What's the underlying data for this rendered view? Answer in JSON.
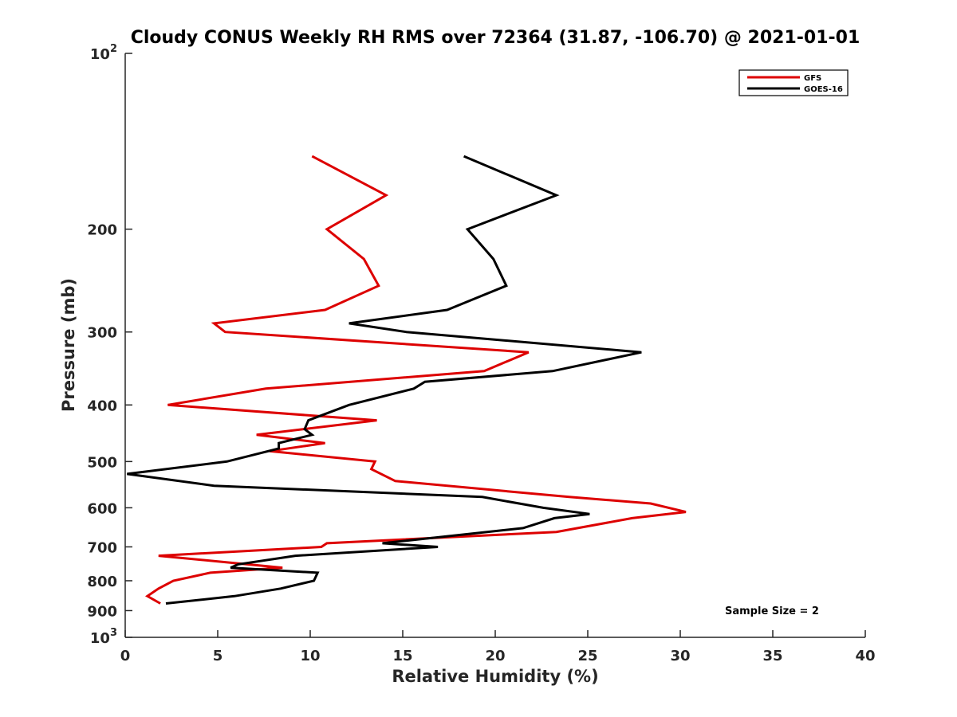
{
  "chart_data": {
    "type": "line",
    "title": "Cloudy CONUS Weekly RH RMS over 72364 (31.87, -106.70) @ 2021-01-01",
    "xlabel": "Relative Humidity (%)",
    "ylabel": "Pressure (mb)",
    "xlim": [
      0,
      40
    ],
    "ylim": [
      100,
      1000
    ],
    "y_scale": "log",
    "y_reversed": true,
    "x_ticks": [
      "0",
      "5",
      "10",
      "15",
      "20",
      "25",
      "30",
      "35",
      "40"
    ],
    "y_ticks": [
      {
        "value": 100,
        "base": "10",
        "exp": "2"
      },
      {
        "value": 200,
        "label": "200"
      },
      {
        "value": 300,
        "label": "300"
      },
      {
        "value": 400,
        "label": "400"
      },
      {
        "value": 500,
        "label": "500"
      },
      {
        "value": 600,
        "label": "600"
      },
      {
        "value": 700,
        "label": "700"
      },
      {
        "value": 800,
        "label": "800"
      },
      {
        "value": 900,
        "label": "900"
      },
      {
        "value": 1000,
        "base": "10",
        "exp": "3"
      }
    ],
    "grid": false,
    "legend_position": "top-right",
    "annotation": "Sample Size = 2",
    "series": [
      {
        "name": "GFS",
        "color": "#dd0000",
        "points": [
          {
            "x": 10.1,
            "y": 150
          },
          {
            "x": 14.1,
            "y": 175
          },
          {
            "x": 10.9,
            "y": 200
          },
          {
            "x": 12.9,
            "y": 225
          },
          {
            "x": 13.7,
            "y": 250
          },
          {
            "x": 10.8,
            "y": 275
          },
          {
            "x": 4.8,
            "y": 290
          },
          {
            "x": 5.4,
            "y": 300
          },
          {
            "x": 21.8,
            "y": 325
          },
          {
            "x": 19.4,
            "y": 350
          },
          {
            "x": 7.6,
            "y": 375
          },
          {
            "x": 2.3,
            "y": 400
          },
          {
            "x": 13.6,
            "y": 425
          },
          {
            "x": 7.1,
            "y": 450
          },
          {
            "x": 10.8,
            "y": 465
          },
          {
            "x": 7.8,
            "y": 480
          },
          {
            "x": 13.5,
            "y": 500
          },
          {
            "x": 13.3,
            "y": 515
          },
          {
            "x": 14.6,
            "y": 540
          },
          {
            "x": 24.0,
            "y": 575
          },
          {
            "x": 28.4,
            "y": 590
          },
          {
            "x": 30.3,
            "y": 610
          },
          {
            "x": 27.4,
            "y": 625
          },
          {
            "x": 23.3,
            "y": 660
          },
          {
            "x": 10.9,
            "y": 690
          },
          {
            "x": 10.6,
            "y": 700
          },
          {
            "x": 1.8,
            "y": 725
          },
          {
            "x": 8.5,
            "y": 760
          },
          {
            "x": 4.6,
            "y": 775
          },
          {
            "x": 2.6,
            "y": 800
          },
          {
            "x": 1.8,
            "y": 825
          },
          {
            "x": 1.2,
            "y": 850
          },
          {
            "x": 1.9,
            "y": 875
          }
        ]
      },
      {
        "name": "GOES-16",
        "color": "#000000",
        "points": [
          {
            "x": 18.3,
            "y": 150
          },
          {
            "x": 23.3,
            "y": 175
          },
          {
            "x": 18.5,
            "y": 200
          },
          {
            "x": 19.9,
            "y": 225
          },
          {
            "x": 20.6,
            "y": 250
          },
          {
            "x": 17.4,
            "y": 275
          },
          {
            "x": 12.1,
            "y": 290
          },
          {
            "x": 15.2,
            "y": 300
          },
          {
            "x": 27.9,
            "y": 325
          },
          {
            "x": 23.1,
            "y": 350
          },
          {
            "x": 16.2,
            "y": 365
          },
          {
            "x": 15.6,
            "y": 375
          },
          {
            "x": 12.1,
            "y": 400
          },
          {
            "x": 9.9,
            "y": 425
          },
          {
            "x": 9.7,
            "y": 440
          },
          {
            "x": 10.1,
            "y": 450
          },
          {
            "x": 8.3,
            "y": 465
          },
          {
            "x": 8.3,
            "y": 475
          },
          {
            "x": 5.5,
            "y": 500
          },
          {
            "x": 0.1,
            "y": 525
          },
          {
            "x": 4.8,
            "y": 550
          },
          {
            "x": 19.3,
            "y": 575
          },
          {
            "x": 22.6,
            "y": 600
          },
          {
            "x": 25.1,
            "y": 615
          },
          {
            "x": 23.2,
            "y": 625
          },
          {
            "x": 21.5,
            "y": 650
          },
          {
            "x": 13.9,
            "y": 690
          },
          {
            "x": 16.9,
            "y": 700
          },
          {
            "x": 9.2,
            "y": 725
          },
          {
            "x": 6.1,
            "y": 750
          },
          {
            "x": 5.7,
            "y": 760
          },
          {
            "x": 10.4,
            "y": 775
          },
          {
            "x": 10.2,
            "y": 800
          },
          {
            "x": 8.4,
            "y": 825
          },
          {
            "x": 5.9,
            "y": 850
          },
          {
            "x": 2.2,
            "y": 875
          }
        ]
      }
    ]
  }
}
